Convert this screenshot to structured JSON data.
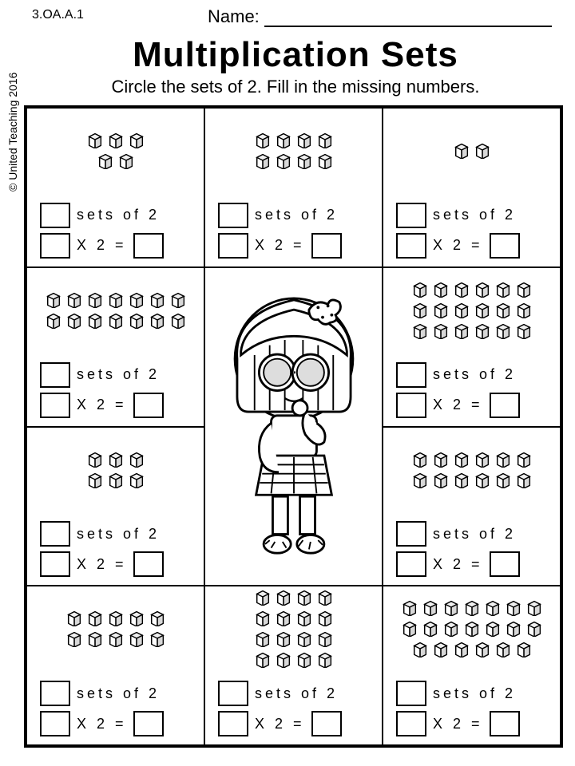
{
  "meta": {
    "copyright": "© United Teaching 2016",
    "standard": "3.OA.A.1",
    "name_label": "Name:",
    "title": "Multiplication Sets",
    "subtitle": "Circle the sets of 2. Fill in the missing numbers."
  },
  "labels": {
    "sets_of": "sets of 2",
    "times": "X 2 ="
  },
  "cells": [
    {
      "pos": "r1c1",
      "cube_rows": [
        3,
        2
      ]
    },
    {
      "pos": "r1c2",
      "cube_rows": [
        4,
        4
      ]
    },
    {
      "pos": "r1c3",
      "cube_rows": [
        2
      ]
    },
    {
      "pos": "r2c1",
      "cube_rows": [
        7,
        7
      ]
    },
    {
      "pos": "r2c3",
      "cube_rows": [
        6,
        6,
        6
      ]
    },
    {
      "pos": "r3c1",
      "cube_rows": [
        3,
        3
      ]
    },
    {
      "pos": "r3c3",
      "cube_rows": [
        6,
        6
      ]
    },
    {
      "pos": "r4c1",
      "cube_rows": [
        5,
        5
      ]
    },
    {
      "pos": "r4c2",
      "cube_rows": [
        4,
        4,
        4,
        4
      ]
    },
    {
      "pos": "r4c3",
      "cube_rows": [
        7,
        7,
        6
      ]
    }
  ],
  "style": {
    "cube_size": 22,
    "border_color": "#000000",
    "background": "#ffffff"
  }
}
